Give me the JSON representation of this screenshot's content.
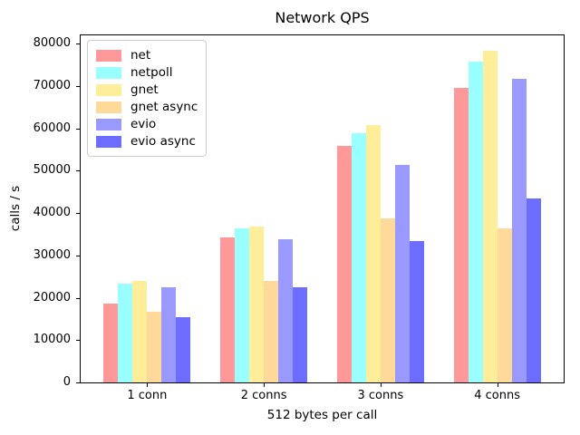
{
  "chart_data": {
    "type": "bar",
    "title": "Network QPS",
    "xlabel": "512 bytes per call",
    "ylabel": "calls / s",
    "categories": [
      "1 conn",
      "2 conns",
      "3 conns",
      "4 conns"
    ],
    "series": [
      {
        "name": "net",
        "color": "#FF9999",
        "values": [
          18600,
          34200,
          55900,
          69600
        ]
      },
      {
        "name": "netpoll",
        "color": "#99FFFF",
        "values": [
          23400,
          36300,
          58900,
          75800
        ]
      },
      {
        "name": "gnet",
        "color": "#FFEE99",
        "values": [
          23900,
          36800,
          60700,
          78300
        ]
      },
      {
        "name": "gnet async",
        "color": "#FFD999",
        "values": [
          16700,
          23900,
          38800,
          36300
        ]
      },
      {
        "name": "evio",
        "color": "#9999FF",
        "values": [
          22500,
          33800,
          51300,
          71700
        ]
      },
      {
        "name": "evio async",
        "color": "#6C6CFF",
        "values": [
          15400,
          22400,
          33500,
          43400
        ]
      }
    ],
    "yticks": [
      0,
      10000,
      20000,
      30000,
      40000,
      50000,
      60000,
      70000,
      80000
    ],
    "ylim": [
      0,
      82000
    ],
    "legend_position": "upper left",
    "grid": false,
    "axis_color": "#000000"
  }
}
